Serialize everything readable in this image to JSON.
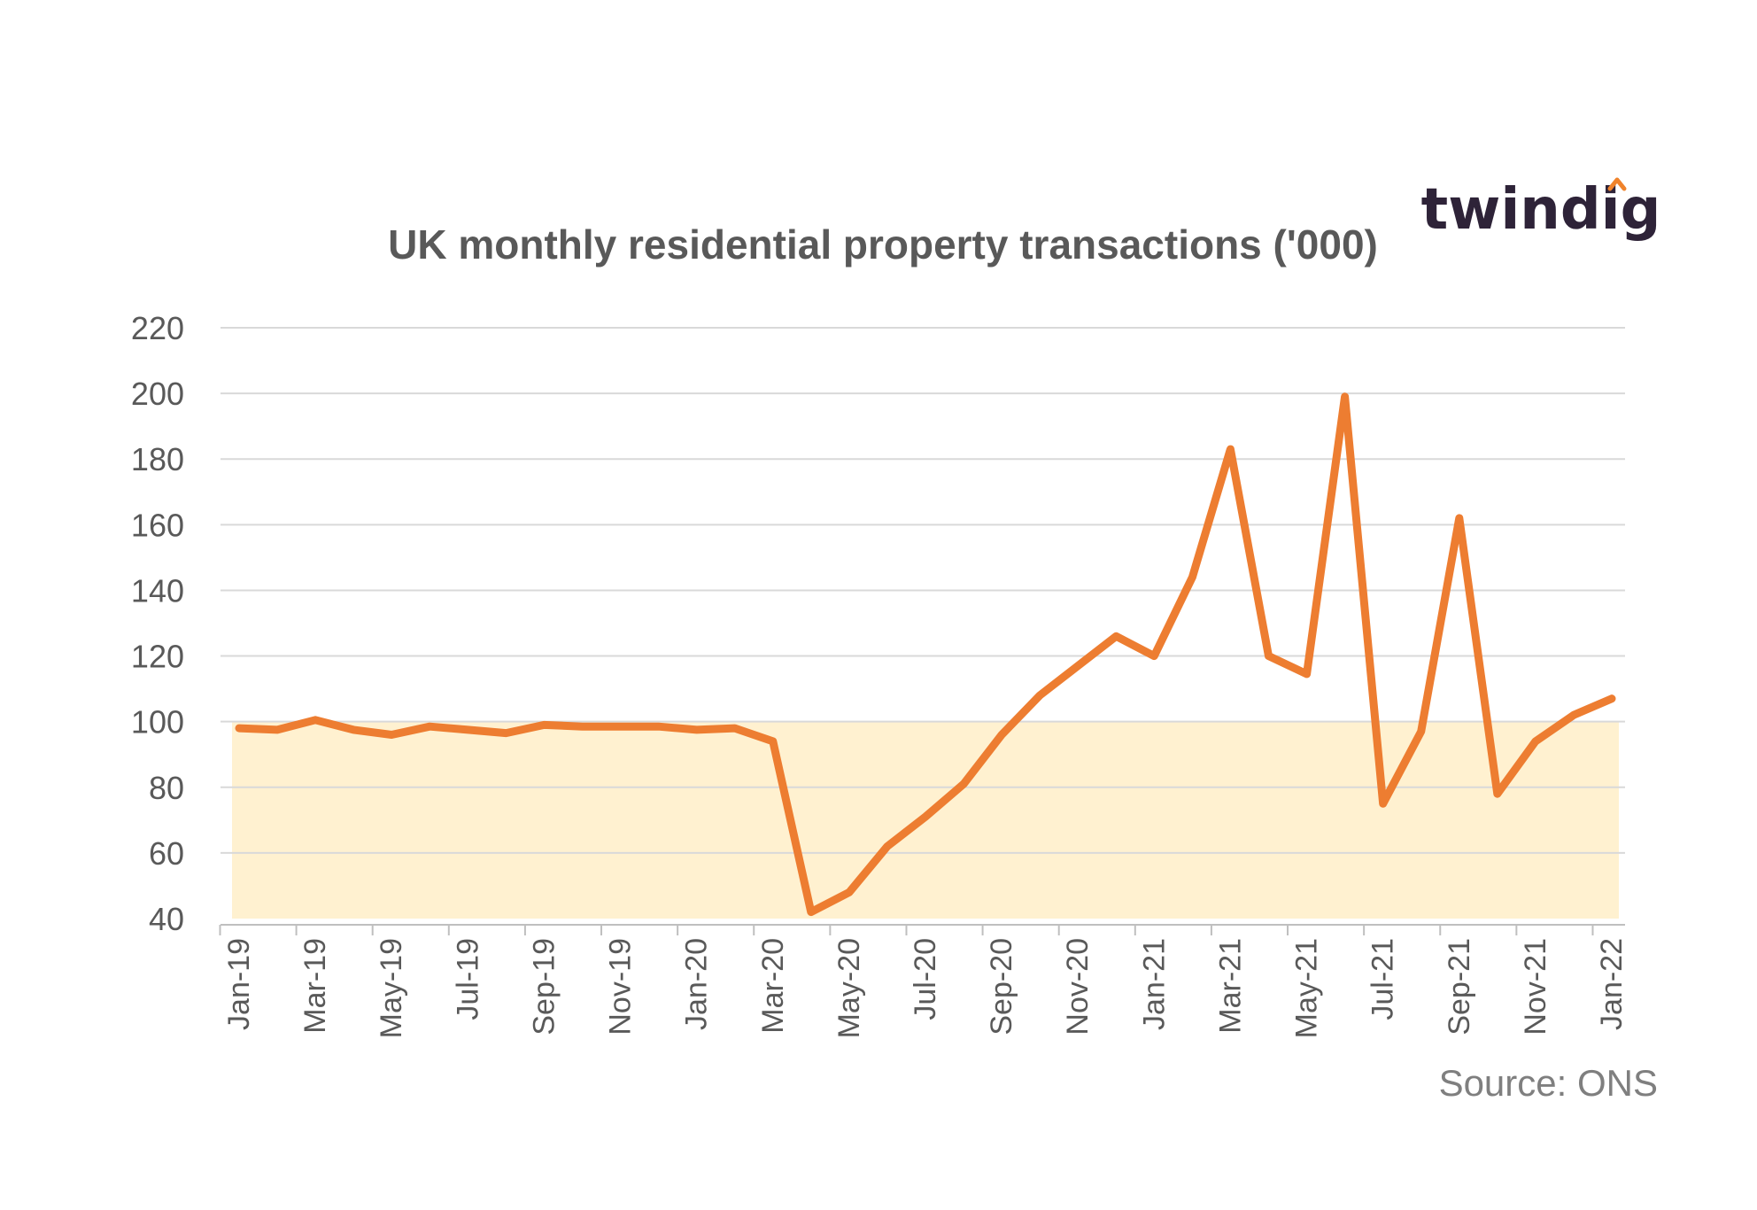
{
  "logo": {
    "text": "twindig",
    "color": "#2e2338",
    "accent": "#f0832b"
  },
  "source": "Source: ONS",
  "chart_data": {
    "type": "line",
    "title": "UK monthly residential property transactions ('000)",
    "xlabel": "",
    "ylabel": "",
    "ylim": [
      40,
      220
    ],
    "yticks": [
      40,
      60,
      80,
      100,
      120,
      140,
      160,
      180,
      200,
      220
    ],
    "grid": true,
    "band": {
      "from": 40,
      "to": 100,
      "color": "#fff1d0"
    },
    "line_color": "#ed7d31",
    "categories": [
      "Jan-19",
      "Feb-19",
      "Mar-19",
      "Apr-19",
      "May-19",
      "Jun-19",
      "Jul-19",
      "Aug-19",
      "Sep-19",
      "Oct-19",
      "Nov-19",
      "Dec-19",
      "Jan-20",
      "Feb-20",
      "Mar-20",
      "Apr-20",
      "May-20",
      "Jun-20",
      "Jul-20",
      "Aug-20",
      "Sep-20",
      "Oct-20",
      "Nov-20",
      "Dec-20",
      "Jan-21",
      "Feb-21",
      "Mar-21",
      "Apr-21",
      "May-21",
      "Jun-21",
      "Jul-21",
      "Aug-21",
      "Sep-21",
      "Oct-21",
      "Nov-21",
      "Dec-21",
      "Jan-22"
    ],
    "tick_labels": [
      "Jan-19",
      "Mar-19",
      "May-19",
      "Jul-19",
      "Sep-19",
      "Nov-19",
      "Jan-20",
      "Mar-20",
      "May-20",
      "Jul-20",
      "Sep-20",
      "Nov-20",
      "Jan-21",
      "Mar-21",
      "May-21",
      "Jul-21",
      "Sep-21",
      "Nov-21",
      "Jan-22"
    ],
    "series": [
      {
        "values": [
          98,
          97.5,
          100.5,
          97.5,
          96,
          98.5,
          97.5,
          96.5,
          99,
          98.5,
          98.5,
          98.5,
          97.5,
          98,
          94,
          42,
          48,
          62,
          71,
          81,
          96,
          108,
          117,
          126,
          120,
          144,
          183,
          120,
          114.5,
          199,
          75,
          97,
          162,
          78,
          94,
          102,
          107
        ]
      }
    ]
  }
}
